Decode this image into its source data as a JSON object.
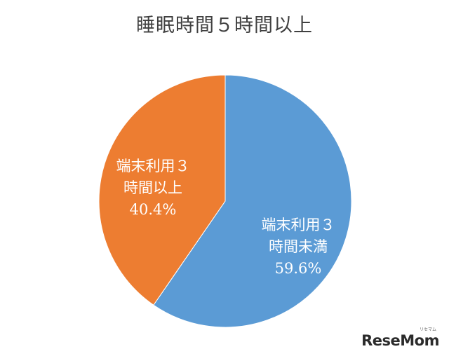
{
  "chart_data": {
    "type": "pie",
    "title": "睡眠時間５時間以上",
    "slices": [
      {
        "label_line1": "端末利用３",
        "label_line2": "時間未満",
        "value": 59.6,
        "value_label": "59.6%",
        "color": "#5b9bd5"
      },
      {
        "label_line1": "端末利用３",
        "label_line2": "時間以上",
        "value": 40.4,
        "value_label": "40.4%",
        "color": "#ed7d31"
      }
    ],
    "start_angle_deg": 0,
    "direction": "clockwise"
  },
  "watermark": {
    "logo": "ReseMom",
    "logo_sub": "リセマム"
  }
}
